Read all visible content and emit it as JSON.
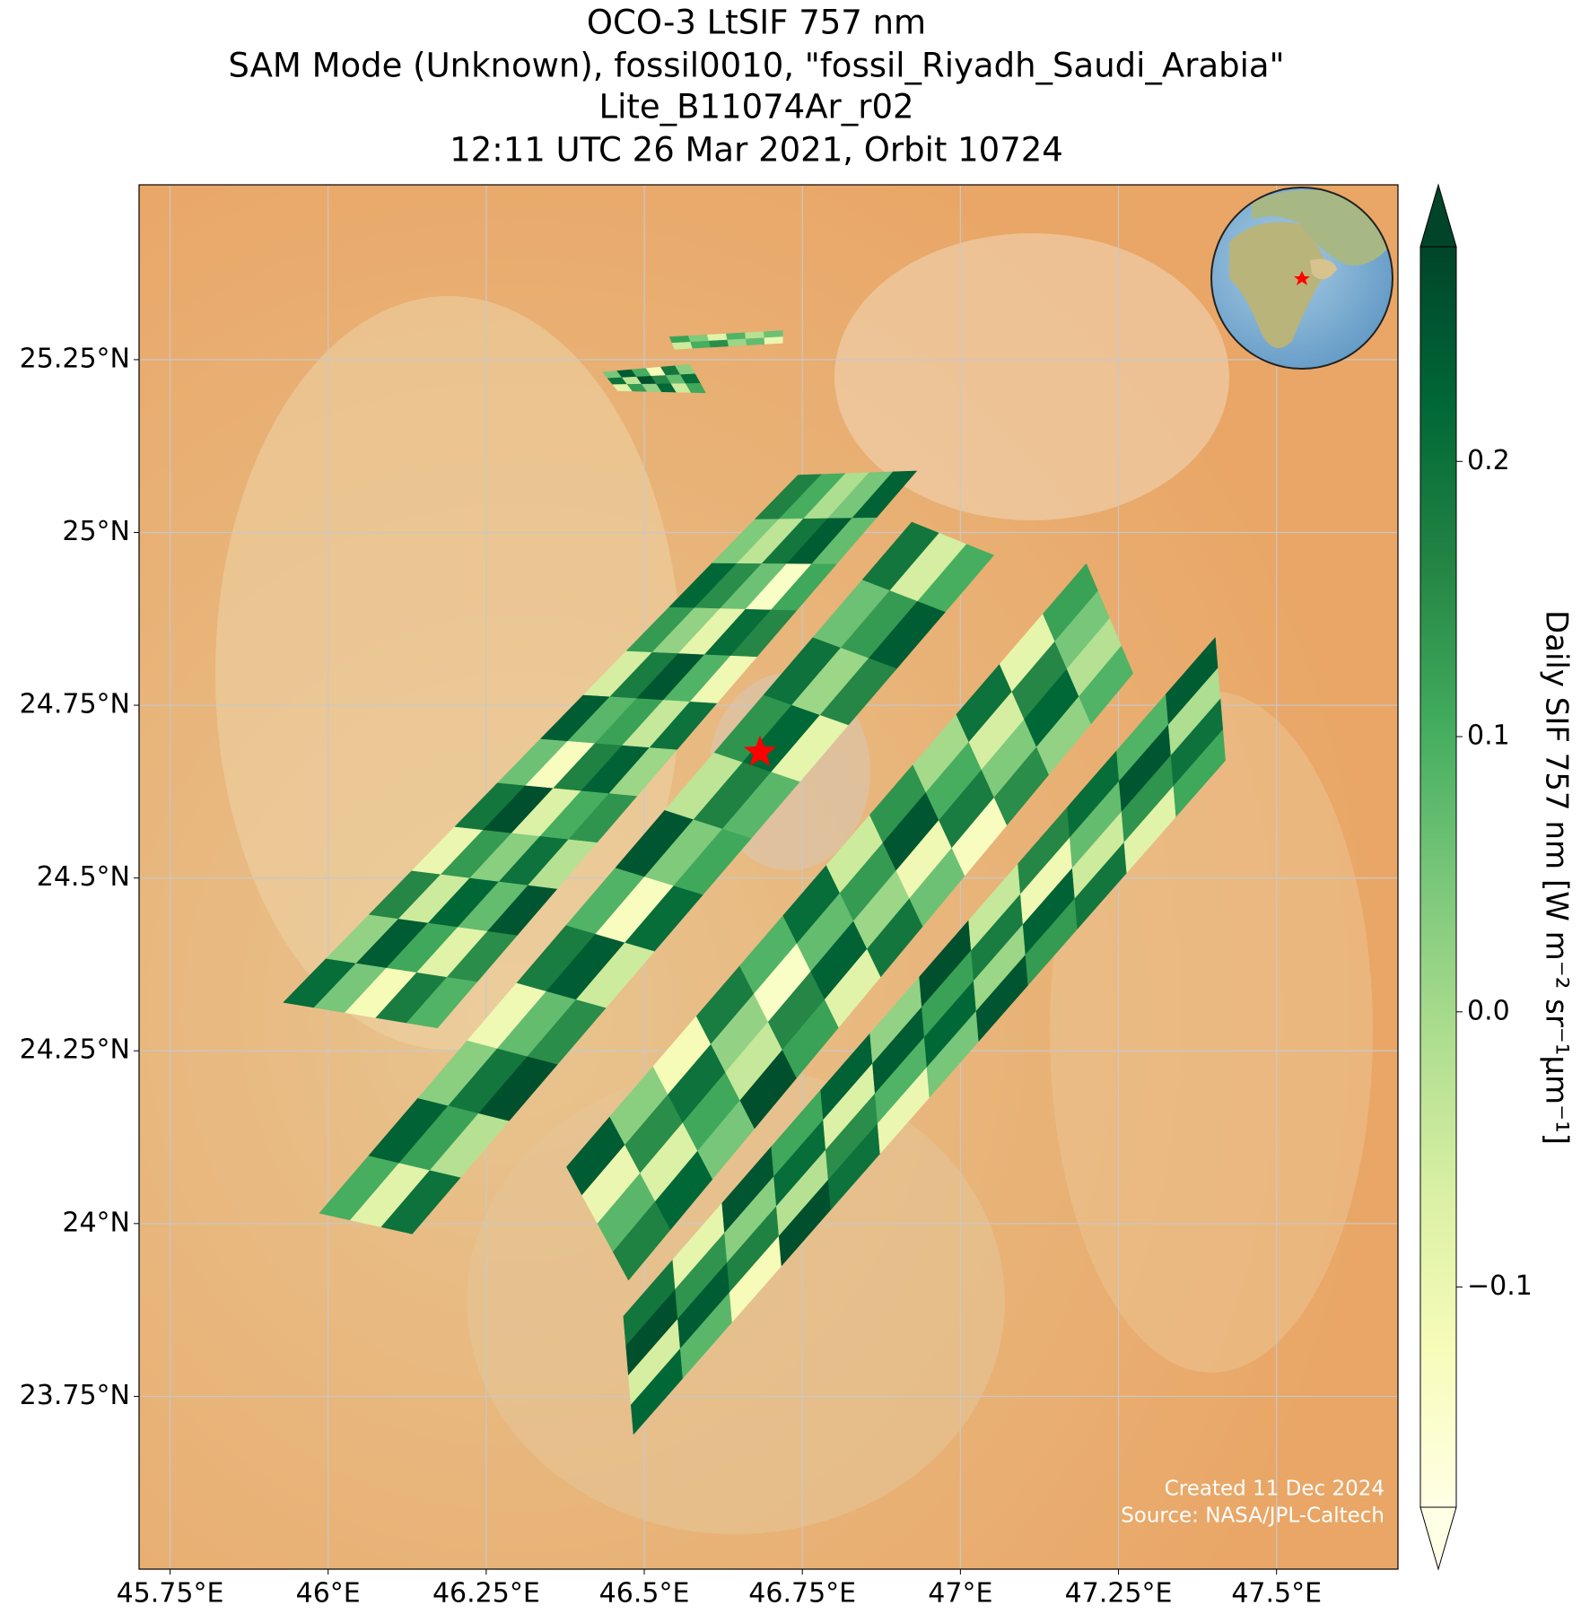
{
  "map": {
    "title": [
      "OCO-3 LtSIF 757 nm",
      "SAM Mode (Unknown), fossil0010, \"fossil_Riyadh_Saudi_Arabia\"",
      "Lite_B11074Ar_r02",
      "12:11 UTC 26 Mar 2021, Orbit 10724"
    ],
    "xlim": [
      45.701,
      47.692
    ],
    "ylim": [
      23.5,
      25.503
    ],
    "xticks": [
      {
        "value": 45.75,
        "label": "45.75°E"
      },
      {
        "value": 46,
        "label": "46°E"
      },
      {
        "value": 46.25,
        "label": "46.25°E"
      },
      {
        "value": 46.5,
        "label": "46.5°E"
      },
      {
        "value": 46.75,
        "label": "46.75°E"
      },
      {
        "value": 47,
        "label": "47°E"
      },
      {
        "value": 47.25,
        "label": "47.25°E"
      },
      {
        "value": 47.5,
        "label": "47.5°E"
      }
    ],
    "yticks": [
      {
        "value": 23.75,
        "label": "23.75°N"
      },
      {
        "value": 24,
        "label": "24°N"
      },
      {
        "value": 24.25,
        "label": "24.25°N"
      },
      {
        "value": 24.5,
        "label": "24.5°N"
      },
      {
        "value": 24.75,
        "label": "24.75°N"
      },
      {
        "value": 25,
        "label": "25°N"
      },
      {
        "value": 25.25,
        "label": "25.25°N"
      }
    ],
    "grid": true,
    "target": {
      "lon": 46.683,
      "lat": 24.682,
      "color": "#ff0000"
    },
    "colorbar": {
      "label": "Daily SIF 757 nm [W m⁻² sr⁻¹μm⁻¹]",
      "clim": [
        -0.18,
        0.278
      ],
      "ticks": [
        {
          "value": -0.1,
          "label": "−0.1"
        },
        {
          "value": 0,
          "label": "0.0"
        },
        0.1,
        0.2
      ],
      "colors": [
        "#ffffe5",
        "#f7fcb9",
        "#d9f0a3",
        "#addd8e",
        "#78c679",
        "#41ab5d",
        "#238443",
        "#006837",
        "#004529"
      ]
    },
    "swaths": [
      {
        "corners": [
          [
            45.929,
            24.32
          ],
          [
            46.173,
            24.283
          ],
          [
            46.743,
            25.083
          ],
          [
            46.931,
            25.089
          ]
        ],
        "values": [
          [
            0.21,
            0.05,
            -0.12,
            0.18,
            0.09
          ],
          [
            0.02,
            0.24,
            0.11,
            -0.08,
            0.15
          ],
          [
            0.16,
            -0.05,
            0.22,
            0.07,
            0.25
          ],
          [
            -0.1,
            0.13,
            0.03,
            0.2,
            -0.02
          ],
          [
            0.19,
            0.26,
            -0.07,
            0.1,
            0.14
          ],
          [
            0.06,
            -0.13,
            0.17,
            0.23,
            0.01
          ],
          [
            0.24,
            0.08,
            0.12,
            -0.04,
            0.2
          ],
          [
            -0.06,
            0.18,
            0.25,
            0.09,
            -0.11
          ],
          [
            0.13,
            0.02,
            -0.09,
            0.21,
            0.16
          ],
          [
            0.22,
            0.15,
            0.06,
            -0.14,
            0.11
          ],
          [
            0.04,
            -0.03,
            0.19,
            0.24,
            0.07
          ],
          [
            0.17,
            0.1,
            -0.01,
            0.05,
            0.23
          ]
        ]
      },
      {
        "corners": [
          [
            45.986,
            24.015
          ],
          [
            46.133,
            23.985
          ],
          [
            46.923,
            25.015
          ],
          [
            47.053,
            24.967
          ]
        ],
        "values": [
          [
            0.1,
            -0.08,
            0.2
          ],
          [
            0.23,
            0.12,
            -0.02
          ],
          [
            0.03,
            0.19,
            0.26
          ],
          [
            -0.11,
            0.07,
            0.15
          ],
          [
            0.18,
            0.24,
            -0.05
          ],
          [
            0.09,
            -0.13,
            0.21
          ],
          [
            0.25,
            0.04,
            0.11
          ],
          [
            -0.03,
            0.17,
            0.08
          ],
          [
            0.14,
            0.22,
            -0.09
          ],
          [
            0.2,
            0.01,
            0.16
          ],
          [
            0.06,
            0.13,
            0.24
          ],
          [
            0.19,
            -0.06,
            0.1
          ]
        ]
      },
      {
        "corners": [
          [
            46.377,
            24.082
          ],
          [
            46.475,
            23.918
          ],
          [
            47.199,
            24.955
          ],
          [
            47.273,
            24.796
          ]
        ],
        "values": [
          [
            0.24,
            -0.1,
            0.08,
            0.17
          ],
          [
            0.03,
            0.15,
            -0.07,
            0.22
          ],
          [
            -0.12,
            0.2,
            0.11,
            0.05
          ],
          [
            0.18,
            0.02,
            -0.04,
            0.26
          ],
          [
            0.09,
            -0.14,
            0.16,
            0.12
          ],
          [
            0.21,
            0.07,
            0.23,
            -0.08
          ],
          [
            -0.05,
            0.13,
            0.01,
            0.19
          ],
          [
            0.14,
            0.25,
            -0.11,
            0.06
          ],
          [
            0.0,
            0.1,
            0.18,
            -0.13
          ],
          [
            0.2,
            -0.06,
            0.04,
            0.15
          ],
          [
            -0.09,
            0.16,
            0.22,
            0.02
          ],
          [
            0.12,
            0.05,
            -0.02,
            0.09
          ]
        ]
      },
      {
        "corners": [
          [
            46.467,
            23.866
          ],
          [
            46.483,
            23.695
          ],
          [
            47.403,
            24.848
          ],
          [
            47.419,
            24.67
          ]
        ],
        "values": [
          [
            0.19,
            0.26,
            -0.06,
            0.22
          ],
          [
            -0.09,
            0.14,
            0.24,
            0.08
          ],
          [
            0.25,
            0.03,
            0.17,
            -0.12
          ],
          [
            0.11,
            0.21,
            -0.02,
            0.26
          ],
          [
            0.23,
            -0.07,
            0.15,
            0.2
          ],
          [
            0.02,
            0.24,
            0.09,
            -0.1
          ],
          [
            0.26,
            0.12,
            0.22,
            0.05
          ],
          [
            -0.04,
            0.18,
            0.01,
            0.25
          ],
          [
            0.16,
            -0.11,
            0.23,
            0.13
          ],
          [
            0.21,
            0.07,
            -0.05,
            0.19
          ],
          [
            0.09,
            0.25,
            0.14,
            -0.08
          ],
          [
            0.24,
            -0.01,
            0.2,
            0.11
          ]
        ]
      },
      {
        "corners": [
          [
            46.434,
            25.232
          ],
          [
            46.458,
            25.205
          ],
          [
            46.572,
            25.243
          ],
          [
            46.597,
            25.202
          ]
        ],
        "values": [
          [
            0.05,
            0.2,
            -0.08
          ],
          [
            0.24,
            -0.03,
            0.13
          ],
          [
            0.1,
            0.26,
            0.02
          ],
          [
            -0.12,
            0.16,
            0.22
          ],
          [
            0.19,
            0.07,
            -0.05
          ],
          [
            0.03,
            0.21,
            0.11
          ]
        ]
      },
      {
        "corners": [
          [
            46.54,
            25.283
          ],
          [
            46.548,
            25.265
          ],
          [
            46.719,
            25.292
          ],
          [
            46.719,
            25.274
          ]
        ],
        "values": [
          [
            0.12,
            -0.05
          ],
          [
            0.04,
            0.1
          ],
          [
            -0.08,
            0.15
          ],
          [
            0.09,
            0.01
          ],
          [
            -0.02,
            0.07
          ],
          [
            0.06,
            -0.1
          ]
        ]
      }
    ],
    "footnote": [
      "Created 11 Dec 2024",
      "Source: NASA/JPL-Caltech"
    ]
  }
}
